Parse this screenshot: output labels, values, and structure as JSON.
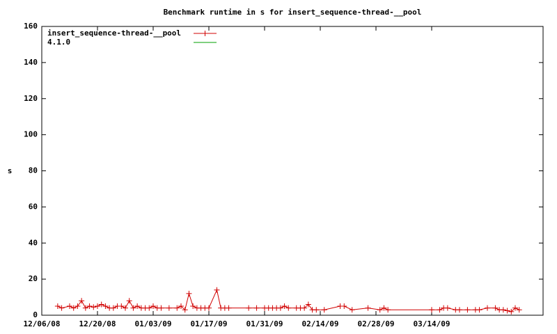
{
  "chart_data": {
    "type": "line",
    "title": "Benchmark runtime in s for insert_sequence-thread-__pool",
    "y_label": "s",
    "x": [
      "12/10/08",
      "12/11/08",
      "12/13/08",
      "12/14/08",
      "12/15/08",
      "12/16/08",
      "12/17/08",
      "12/18/08",
      "12/19/08",
      "12/20/08",
      "12/21/08",
      "12/22/08",
      "12/23/08",
      "12/24/08",
      "12/25/08",
      "12/26/08",
      "12/27/08",
      "12/28/08",
      "12/29/08",
      "12/30/08",
      "12/31/08",
      "01/01/09",
      "01/02/09",
      "01/03/09",
      "01/04/09",
      "01/05/09",
      "01/07/09",
      "01/09/09",
      "01/10/09",
      "01/11/09",
      "01/12/09",
      "01/13/09",
      "01/14/09",
      "01/15/09",
      "01/16/09",
      "01/17/09",
      "01/19/09",
      "01/20/09",
      "01/21/09",
      "01/22/09",
      "01/27/09",
      "01/29/09",
      "01/31/09",
      "02/01/09",
      "02/02/09",
      "02/03/09",
      "02/04/09",
      "02/05/09",
      "02/06/09",
      "02/08/09",
      "02/09/09",
      "02/10/09",
      "02/11/09",
      "02/12/09",
      "02/13/09",
      "02/15/09",
      "02/19/09",
      "02/20/09",
      "02/22/09",
      "02/26/09",
      "03/01/09",
      "03/02/09",
      "03/03/09",
      "03/14/09",
      "03/16/09",
      "03/17/09",
      "03/18/09",
      "03/20/09",
      "03/21/09",
      "03/23/09",
      "03/25/09",
      "03/26/09",
      "03/28/09",
      "03/30/09",
      "03/31/09",
      "04/01/09",
      "04/02/09",
      "04/03/09",
      "04/04/09",
      "04/05/09"
    ],
    "series": [
      {
        "name": "insert_sequence-thread-__pool",
        "color": "#d00000",
        "values": [
          5,
          4,
          5,
          4,
          5,
          8,
          4,
          5,
          4.5,
          5,
          6,
          5,
          4,
          4,
          5,
          5,
          4,
          8,
          4,
          5,
          4,
          4,
          4,
          5,
          4,
          4,
          4,
          4,
          5,
          3,
          12,
          5,
          4,
          4,
          4,
          4,
          14,
          4,
          4,
          4,
          4,
          4,
          4,
          4,
          4,
          4,
          4,
          5,
          4,
          4,
          4,
          4,
          6,
          3,
          3,
          3,
          5,
          5,
          3,
          4,
          3,
          4,
          3,
          3,
          3,
          4,
          4,
          3,
          3,
          3,
          3,
          3,
          4,
          4,
          3,
          3,
          2.5,
          2,
          4,
          3
        ]
      },
      {
        "name": "4.1.0",
        "color": "#00a000"
      }
    ],
    "xlim": [
      "12/06/08",
      "04/11/09"
    ],
    "xticks": [
      "12/06/08",
      "12/20/08",
      "01/03/09",
      "01/17/09",
      "01/31/09",
      "02/14/09",
      "02/28/09",
      "03/14/09"
    ],
    "ylim": [
      0,
      160
    ],
    "yticks": [
      0,
      20,
      40,
      60,
      80,
      100,
      120,
      140,
      160
    ],
    "grid": false,
    "legend": "top-left"
  }
}
